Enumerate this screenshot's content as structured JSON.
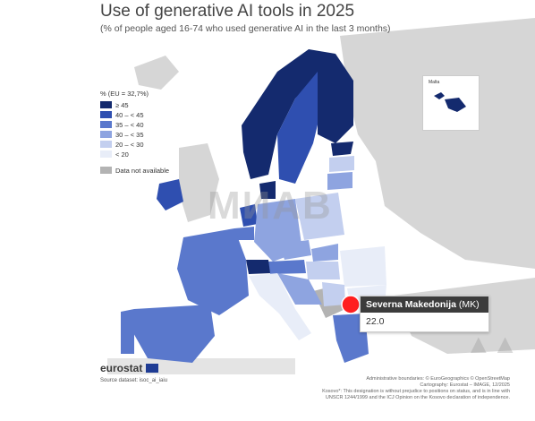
{
  "title": "Use of generative AI tools in 2025",
  "subtitle": "(% of people aged 16-74 who used generative AI in the last 3 months)",
  "legend": {
    "header": "% (EU = 32,7%)",
    "classes": [
      {
        "label": "≥ 45",
        "color": "#142a6e"
      },
      {
        "label": "40 – < 45",
        "color": "#2f4fb0"
      },
      {
        "label": "35 – < 40",
        "color": "#5a78cc"
      },
      {
        "label": "30 – < 35",
        "color": "#8ea4e0"
      },
      {
        "label": "20 – < 30",
        "color": "#c3cfef"
      },
      {
        "label": "< 20",
        "color": "#e8edf8"
      }
    ],
    "na_label": "Data not available",
    "na_color": "#b3b3b3"
  },
  "tooltip": {
    "country": "Severna Makedonija",
    "code": "(MK)",
    "value": "22.0"
  },
  "inset_label": "Malta",
  "brand": "eurostat",
  "source": "Source dataset: isoc_ai_iaiu",
  "credits": [
    "Administrative boundaries: © EuroGeographics © OpenStreetMap",
    "Cartography: Eurostat – IMAGE, 12/2025",
    "Kosovo*: This designation is without prejudice to positions on status, and is in line with",
    "UNSCR 1244/1999 and the ICJ Opinion on the Kosovo declaration of independence."
  ],
  "watermark": "МИАВ",
  "highlight_color": "#ff1f1f"
}
